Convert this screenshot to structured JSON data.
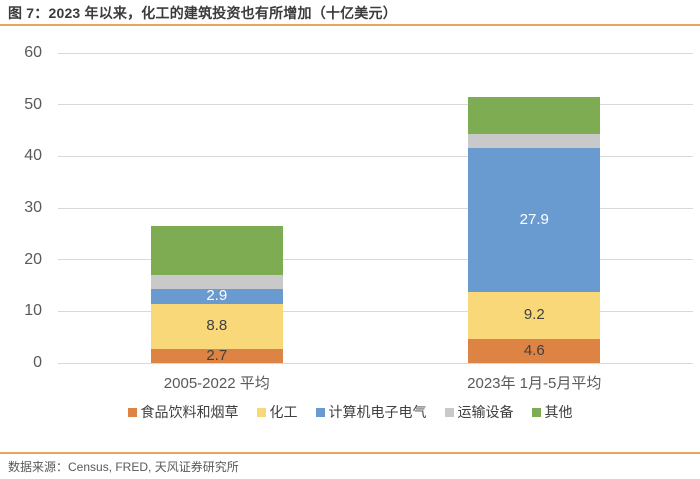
{
  "title": "图 7：2023 年以来，化工的建筑投资也有所增加（十亿美元）",
  "footer": {
    "source_text": "数据来源：Census, FRED, 天风证券研究所"
  },
  "colors": {
    "accent_rule": "#eca55f",
    "gridline": "#d9d9d9",
    "axis_text": "#595959",
    "title_text": "#3b3b3b",
    "legend_text": "#404040"
  },
  "chart_data": {
    "type": "bar",
    "stacked": true,
    "title": "图 7：2023 年以来，化工的建筑投资也有所增加（十亿美元）",
    "categories": [
      "2005-2022 平均",
      "2023年 1月-5月平均"
    ],
    "series": [
      {
        "name": "食品饮料和烟草",
        "color": "#dd8343",
        "values": [
          2.7,
          4.6
        ],
        "labels": [
          "2.7",
          "4.6"
        ],
        "label_color": "#404040"
      },
      {
        "name": "化工",
        "color": "#f8d878",
        "values": [
          8.8,
          9.2
        ],
        "labels": [
          "8.8",
          "9.2"
        ],
        "label_color": "#404040"
      },
      {
        "name": "计算机电子电气",
        "color": "#699bd1",
        "values": [
          2.9,
          27.9
        ],
        "labels": [
          "2.9",
          "27.9"
        ],
        "label_color": "#ffffff"
      },
      {
        "name": "运输设备",
        "color": "#c9c9c9",
        "values": [
          2.6,
          2.6
        ],
        "labels": [
          null,
          null
        ],
        "label_color": "#404040"
      },
      {
        "name": "其他",
        "color": "#7dac53",
        "values": [
          9.5,
          7.1
        ],
        "labels": [
          null,
          null
        ],
        "label_color": "#404040"
      }
    ],
    "ylim": [
      0,
      60
    ],
    "ytick_step": 10,
    "yticks": [
      0,
      10,
      20,
      30,
      40,
      50,
      60
    ],
    "grid": true,
    "legend_position": "bottom",
    "xlabel": "",
    "ylabel": ""
  }
}
